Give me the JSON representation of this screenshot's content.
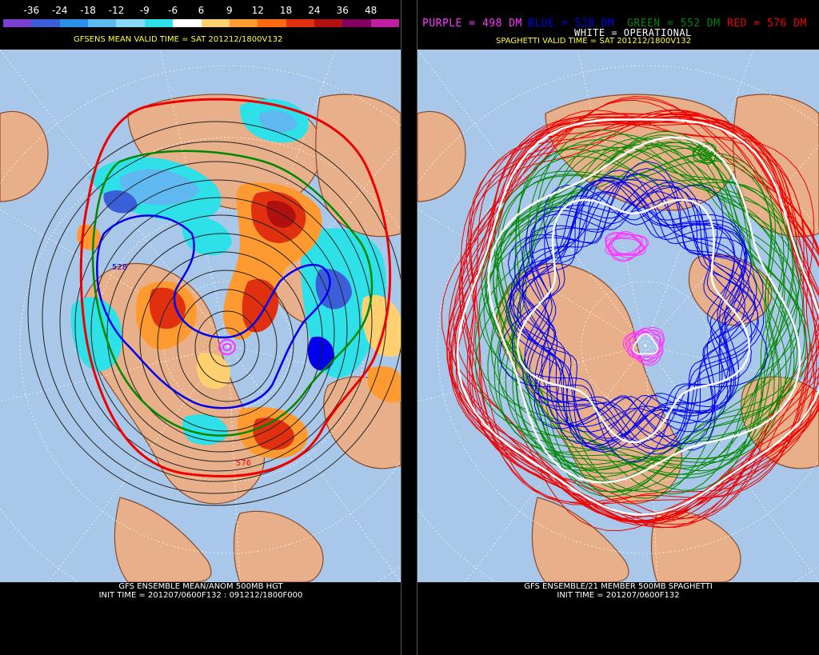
{
  "left_panel": {
    "colorbar": {
      "tick_labels": [
        "-36",
        "-24",
        "-18",
        "-12",
        "-9",
        "-6",
        "6",
        "9",
        "12",
        "18",
        "24",
        "36",
        "48"
      ],
      "colors": [
        "#7b3fd0",
        "#3a5fd8",
        "#2e8fe8",
        "#5fb8f0",
        "#8ad8f5",
        "#2ee0e8",
        "#ffffff",
        "#ffd070",
        "#ff9a30",
        "#ff6a10",
        "#e03010",
        "#b01010",
        "#800060",
        "#c020a0"
      ]
    },
    "title": "GFSENS MEAN VALID TIME = SAT 201212/1800V132",
    "footer_line1": "GFS ENSEMBLE MEAN/ANOM 500MB HGT",
    "footer_line2": "INIT TIME = 201207/0600F132 : 091212/1800F000",
    "contour_labels": [
      "528",
      "576"
    ]
  },
  "right_panel": {
    "legend": {
      "purple": "PURPLE = 498 DM",
      "blue": "BLUE = 528 DM",
      "green": "GREEN = 552 DM",
      "red": "RED = 576 DM",
      "white": "WHITE = OPERATIONAL"
    },
    "title": "SPAGHETTI VALID TIME = SAT 201212/1800V132",
    "footer_line1": "GFS ENSEMBLE/21 MEMBER 500MB SPAGHETTI",
    "footer_line2": "INIT TIME = 201207/0600F132"
  },
  "colors": {
    "ocean": "#a9c7e8",
    "land": "#e8b08a",
    "coast": "#8a4a2a",
    "purple": "#ff33ff",
    "blue": "#0000ee",
    "green": "#008800",
    "red": "#ee0000",
    "white": "#ffffff"
  }
}
